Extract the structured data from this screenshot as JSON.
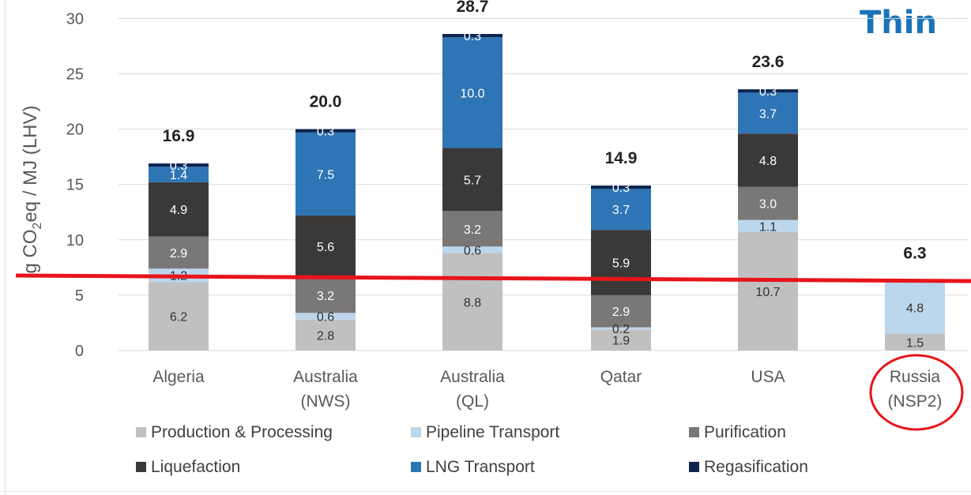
{
  "corner_title": "Thin",
  "chart_data": {
    "type": "bar",
    "stacked": true,
    "ylabel_main": "g CO",
    "ylabel_sub": "2",
    "ylabel_rest": "eq / MJ (LHV)",
    "ylim": [
      0,
      30
    ],
    "yticks": [
      0,
      5,
      10,
      15,
      20,
      25,
      30
    ],
    "categories": [
      [
        "Algeria"
      ],
      [
        "Australia",
        "(NWS)"
      ],
      [
        "Australia",
        "(QL)"
      ],
      [
        "Qatar"
      ],
      [
        "USA"
      ],
      [
        "Russia",
        "(NSP2)"
      ]
    ],
    "totals": [
      "16.9",
      "20.0",
      "28.7",
      "14.9",
      "23.6",
      "6.3"
    ],
    "series": [
      {
        "name": "Production & Processing",
        "color": "#c0c0c0",
        "label_color": "#333333",
        "values": [
          6.2,
          2.8,
          8.8,
          1.9,
          10.7,
          1.5
        ],
        "labels": [
          "6.2",
          "2.8",
          "8.8",
          "1.9",
          "10.7",
          "1.5"
        ]
      },
      {
        "name": "Pipeline Transport",
        "color": "#bcd6ec",
        "label_color": "#333333",
        "values": [
          1.2,
          0.6,
          0.6,
          0.2,
          1.1,
          4.8
        ],
        "labels": [
          "1.2",
          "0.6",
          "0.6",
          "0.2",
          "1.1",
          "4.8"
        ]
      },
      {
        "name": "Purification",
        "color": "#7a7777",
        "label_color": "#ffffff",
        "values": [
          2.9,
          3.2,
          3.2,
          2.9,
          3.0,
          0
        ],
        "labels": [
          "2.9",
          "3.2",
          "3.2",
          "2.9",
          "3.0",
          ""
        ]
      },
      {
        "name": "Liquefaction",
        "color": "#3b3838",
        "label_color": "#ffffff",
        "values": [
          4.9,
          5.6,
          5.7,
          5.9,
          4.8,
          0
        ],
        "labels": [
          "4.9",
          "5.6",
          "5.7",
          "5.9",
          "4.8",
          ""
        ]
      },
      {
        "name": "LNG Transport",
        "color": "#2e75b6",
        "label_color": "#ffffff",
        "values": [
          1.4,
          7.5,
          10.0,
          3.7,
          3.7,
          0
        ],
        "labels": [
          "1.4",
          "7.5",
          "10.0",
          "3.7",
          "3.7",
          ""
        ]
      },
      {
        "name": "Regasification",
        "color": "#0d2451",
        "label_color": "#ffffff",
        "values": [
          0.3,
          0.3,
          0.3,
          0.3,
          0.3,
          0
        ],
        "labels": [
          "0.3",
          "0.3",
          "0.3",
          "0.3",
          "0.3",
          ""
        ]
      }
    ],
    "legend_position": "bottom",
    "legend_order": [
      "Production & Processing",
      "Pipeline Transport",
      "Purification",
      "Liquefaction",
      "LNG Transport",
      "Regasification"
    ],
    "annotations": {
      "reference_line": {
        "y_value": 6.3,
        "color": "#e8141b"
      },
      "highlight_ellipse": {
        "category": "Russia (NSP2)",
        "color": "#e8141b"
      }
    },
    "grid": {
      "horizontal": true,
      "color": "#d9d9d9"
    }
  }
}
